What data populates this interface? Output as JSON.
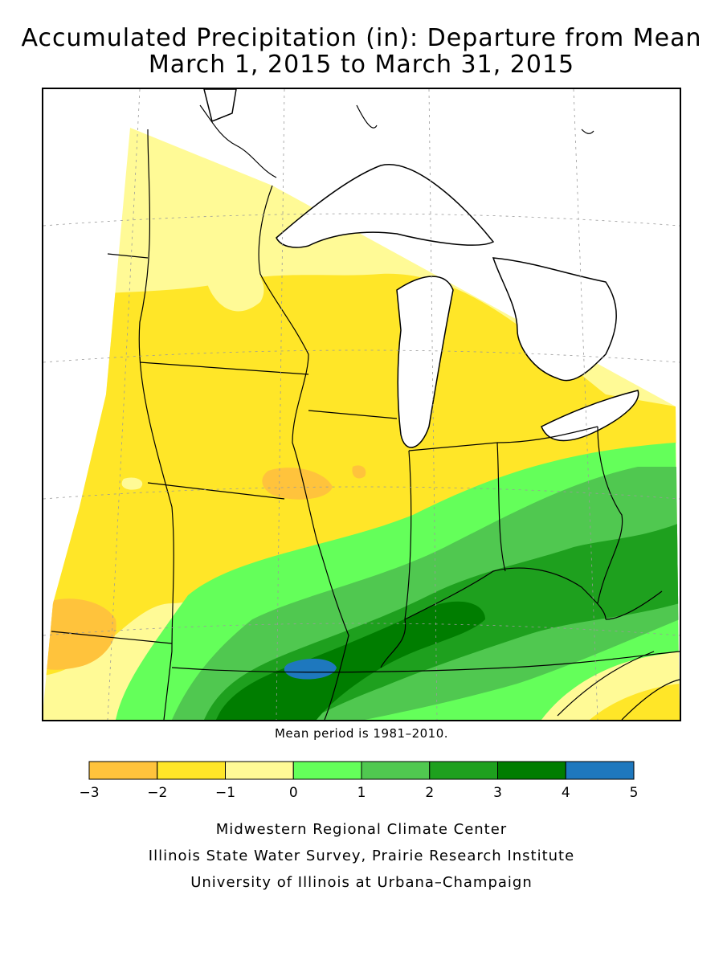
{
  "title": {
    "line1": "Accumulated Precipitation (in): Departure from Mean",
    "line2": "March 1, 2015 to March 31, 2015"
  },
  "note": "Mean period is 1981–2010.",
  "legend": {
    "bins": [
      {
        "min": -3,
        "max": -2,
        "color": "#FFC33C"
      },
      {
        "min": -2,
        "max": -1,
        "color": "#FFE628"
      },
      {
        "min": -1,
        "max": 0,
        "color": "#FFFA96"
      },
      {
        "min": 0,
        "max": 1,
        "color": "#64FF5A"
      },
      {
        "min": 1,
        "max": 2,
        "color": "#50C850"
      },
      {
        "min": 2,
        "max": 3,
        "color": "#1EA01E"
      },
      {
        "min": 3,
        "max": 4,
        "color": "#007D00"
      },
      {
        "min": 4,
        "max": 5,
        "color": "#1E78BE"
      }
    ],
    "tick_labels": [
      "−3",
      "−2",
      "−1",
      "0",
      "1",
      "2",
      "3",
      "4",
      "5"
    ]
  },
  "credits": [
    "Midwestern Regional Climate Center",
    "Illinois State Water Survey, Prairie Research Institute",
    "University of Illinois at Urbana–Champaign"
  ]
}
